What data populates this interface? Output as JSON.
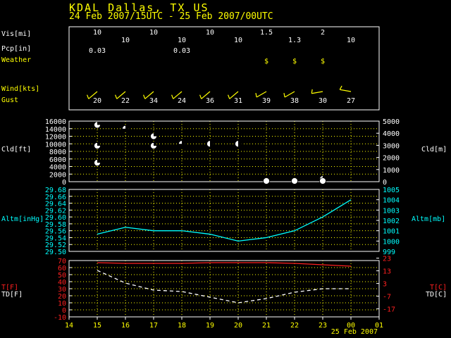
{
  "header": {
    "title": "KDAL Dallas, TX US",
    "period": "24 Feb 2007/15UTC - 25 Feb 2007/00UTC"
  },
  "colors": {
    "header": "#ffff00",
    "frame": "#ffffff",
    "pressure": "#00ffff",
    "temperature": "#ff2020",
    "dewpoint": "#ffffff",
    "grid": "#ffff00",
    "wind_barb": "#ffff00"
  },
  "table": {
    "hours": [
      15,
      16,
      17,
      18,
      19,
      20,
      21,
      22,
      23,
      0
    ],
    "vis": {
      "label": "Vis[mi]",
      "values": [
        "10",
        "10",
        "10",
        "10",
        "10",
        "10",
        "1.5",
        "1.3",
        "2",
        "10"
      ]
    },
    "pcp": {
      "label": "Pcp[in]",
      "values": [
        "0.03",
        "",
        "",
        "0.03",
        "",
        "",
        "",
        "",
        "",
        ""
      ]
    },
    "weather": {
      "label": "Weather",
      "values": [
        "",
        "",
        "",
        "",
        "",
        "",
        "$",
        "$",
        "$",
        ""
      ]
    },
    "wind": {
      "label": "Wind[kts]",
      "dir_deg": [
        230,
        230,
        230,
        230,
        230,
        230,
        240,
        240,
        260,
        280
      ],
      "icon": "wind-barb-icon"
    },
    "gust": {
      "label": "Gust",
      "values": [
        "20",
        "22",
        "34",
        "24",
        "36",
        "31",
        "39",
        "38",
        "30",
        "27"
      ]
    }
  },
  "chart_data": [
    {
      "type": "scatter",
      "name": "cloud",
      "ylabel_left": "Cld[ft]",
      "ylabel_right": "Cld[m]",
      "ylim": [
        0,
        16000
      ],
      "yticks_left": [
        "0",
        "2000",
        "4000",
        "6000",
        "8000",
        "10000",
        "12000",
        "14000",
        "16000"
      ],
      "ylim_right": [
        0,
        5000
      ],
      "yticks_right": [
        "0",
        "1000",
        "2000",
        "3000",
        "4000",
        "5000"
      ],
      "grid": true,
      "points": [
        {
          "hour": 15,
          "ft": 15000,
          "cover": "few"
        },
        {
          "hour": 15,
          "ft": 9500,
          "cover": "few"
        },
        {
          "hour": 15,
          "ft": 5000,
          "cover": "few"
        },
        {
          "hour": 16,
          "ft": 14000,
          "cover": "broken"
        },
        {
          "hour": 17,
          "ft": 12000,
          "cover": "few"
        },
        {
          "hour": 17,
          "ft": 9500,
          "cover": "few"
        },
        {
          "hour": 18,
          "ft": 10000,
          "cover": "broken"
        },
        {
          "hour": 19,
          "ft": 10000,
          "cover": "scattered"
        },
        {
          "hour": 20,
          "ft": 10000,
          "cover": "scattered"
        },
        {
          "hour": 21,
          "ft": 100,
          "cover": "overcast"
        },
        {
          "hour": 22,
          "ft": 100,
          "cover": "overcast"
        },
        {
          "hour": 23,
          "ft": 700,
          "cover": "few"
        },
        {
          "hour": 23,
          "ft": 100,
          "cover": "overcast"
        }
      ]
    },
    {
      "type": "line",
      "name": "altimeter",
      "ylabel_left": "Altm[inHg]",
      "ylabel_right": "Altm[mb]",
      "ylim": [
        29.5,
        29.68
      ],
      "yticks_left": [
        "29.50",
        "29.52",
        "29.54",
        "29.56",
        "29.58",
        "29.60",
        "29.62",
        "29.64",
        "29.66",
        "29.68"
      ],
      "ylim_right": [
        999,
        1005
      ],
      "yticks_right": [
        "999",
        "1000",
        "1001",
        "1002",
        "1003",
        "1004",
        "1005"
      ],
      "grid": true,
      "x": [
        15,
        16,
        17,
        18,
        19,
        20,
        21,
        22,
        23,
        24
      ],
      "values": [
        29.55,
        29.57,
        29.56,
        29.56,
        29.55,
        29.53,
        29.54,
        29.56,
        29.6,
        29.65
      ]
    },
    {
      "type": "line",
      "name": "temperature",
      "ylabel_left_1": "T[F]",
      "ylabel_left_2": "TD[F]",
      "ylabel_right_1": "T[C]",
      "ylabel_right_2": "TD[C]",
      "ylim": [
        -10,
        70
      ],
      "yticks_left": [
        "-10",
        "0",
        "10",
        "20",
        "30",
        "40",
        "50",
        "60",
        "70"
      ],
      "yticks_right": [
        "-17",
        "-7",
        "3",
        "13",
        "23"
      ],
      "yticks_right_values": [
        -17,
        -7,
        3,
        13,
        23
      ],
      "grid": true,
      "x": [
        15,
        16,
        17,
        18,
        19,
        20,
        21,
        22,
        23,
        24
      ],
      "series": [
        {
          "key": "T",
          "values": [
            67,
            66,
            66,
            66,
            67,
            67,
            67,
            66,
            64,
            62
          ]
        },
        {
          "key": "TD",
          "values": [
            56,
            38,
            28,
            26,
            18,
            10,
            16,
            25,
            30,
            30
          ]
        }
      ],
      "xticks": [
        "14",
        "15",
        "16",
        "17",
        "18",
        "19",
        "20",
        "21",
        "22",
        "23",
        "00",
        "01"
      ],
      "date_label": "25 Feb 2007"
    }
  ]
}
